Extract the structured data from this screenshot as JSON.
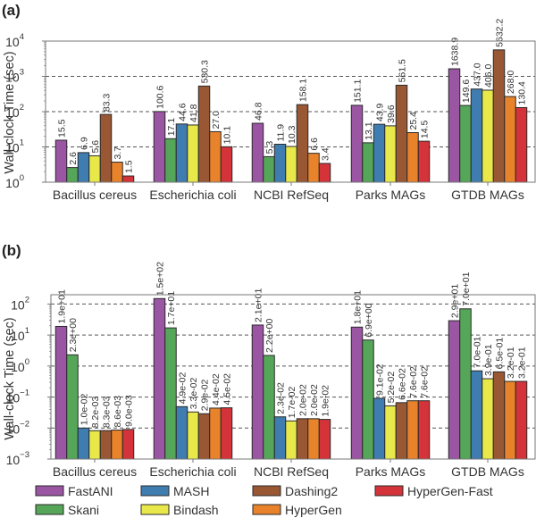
{
  "chart_data": [
    {
      "panel": "(a)",
      "type": "bar",
      "title": "",
      "xlabel": "",
      "ylabel": "Wall-clock Time (sec)",
      "yscale": "log",
      "ylim": [
        1,
        10000
      ],
      "yticks": [
        {
          "base": "10",
          "exp": "0"
        },
        {
          "base": "10",
          "exp": "1"
        },
        {
          "base": "10",
          "exp": "2"
        },
        {
          "base": "10",
          "exp": "3"
        },
        {
          "base": "10",
          "exp": "4"
        }
      ],
      "ytick_values": [
        1,
        10,
        100,
        1000,
        10000
      ],
      "grid": "horizontal dashed at 10, 100, 1000",
      "categories": [
        "Bacillus cereus",
        "Escherichia coli",
        "NCBI RefSeq",
        "Parks MAGs",
        "GTDB MAGs"
      ],
      "series": [
        {
          "name": "FastANI",
          "color": "#9a55a3",
          "values": [
            15.5,
            100.6,
            46.8,
            151.1,
            1638.9
          ],
          "labels": [
            "15.5",
            "100.6",
            "46.8",
            "151.1",
            "1638.9"
          ]
        },
        {
          "name": "Skani",
          "color": "#56a659",
          "values": [
            2.6,
            17.1,
            5.3,
            13.1,
            149.6
          ],
          "labels": [
            "2.6",
            "17.1",
            "5.3",
            "13.1",
            "149.6"
          ]
        },
        {
          "name": "MASH",
          "color": "#3f7db1",
          "values": [
            6.9,
            44.6,
            11.9,
            43.9,
            437.0
          ],
          "labels": [
            "6.9",
            "44.6",
            "11.9",
            "43.9",
            "437.0"
          ]
        },
        {
          "name": "Bindash",
          "color": "#e9e84b",
          "values": [
            5.6,
            41.8,
            10.3,
            39.6,
            406.0
          ],
          "labels": [
            "5.6",
            "41.8",
            "10.3",
            "39.6",
            "406.0"
          ]
        },
        {
          "name": "Dashing2",
          "color": "#995833",
          "values": [
            83.3,
            530.3,
            158.1,
            561.5,
            5632.2
          ],
          "labels": [
            "83.3",
            "530.3",
            "158.1",
            "561.5",
            "5632.2"
          ]
        },
        {
          "name": "HyperGen",
          "color": "#e8822b",
          "values": [
            3.7,
            27.0,
            6.6,
            25.4,
            268.0
          ],
          "labels": [
            "3.7",
            "27.0",
            "6.6",
            "25.4",
            "268.0"
          ]
        },
        {
          "name": "HyperGen-Fast",
          "color": "#d5333a",
          "values": [
            1.5,
            10.1,
            3.4,
            14.5,
            130.4
          ],
          "labels": [
            "1.5",
            "10.1",
            "3.4",
            "14.5",
            "130.4"
          ]
        }
      ]
    },
    {
      "panel": "(b)",
      "type": "bar",
      "title": "",
      "xlabel": "",
      "ylabel": "Wall-clock Time (sec)",
      "yscale": "log",
      "ylim": [
        0.001,
        200
      ],
      "yticks": [
        {
          "base": "10",
          "exp": "−3"
        },
        {
          "base": "10",
          "exp": "−2"
        },
        {
          "base": "10",
          "exp": "−1"
        },
        {
          "base": "10",
          "exp": "0"
        },
        {
          "base": "10",
          "exp": "1"
        },
        {
          "base": "10",
          "exp": "2"
        }
      ],
      "ytick_values": [
        0.001,
        0.01,
        0.1,
        1,
        10,
        100
      ],
      "grid": "horizontal dashed at 0.01, 0.1, 1, 10, 100",
      "categories": [
        "Bacillus cereus",
        "Escherichia coli",
        "NCBI RefSeq",
        "Parks MAGs",
        "GTDB MAGs"
      ],
      "series": [
        {
          "name": "FastANI",
          "color": "#9a55a3",
          "values": [
            19,
            150,
            21,
            18,
            29
          ],
          "labels": [
            "1.9e+01",
            "1.5e+02",
            "2.1e+01",
            "1.8e+01",
            "2.9e+01"
          ]
        },
        {
          "name": "Skani",
          "color": "#56a659",
          "values": [
            2.3,
            17,
            2.2,
            6.9,
            70
          ],
          "labels": [
            "2.3e+00",
            "1.7e+01",
            "2.2e+00",
            "6.9e+00",
            "7.0e+01"
          ]
        },
        {
          "name": "MASH",
          "color": "#3f7db1",
          "values": [
            0.01,
            0.049,
            0.023,
            0.091,
            0.7
          ],
          "labels": [
            "1.0e-02",
            "4.9e-02",
            "2.3e-02",
            "9.1e-02",
            "7.0e-01"
          ]
        },
        {
          "name": "Bindash",
          "color": "#e9e84b",
          "values": [
            0.0082,
            0.033,
            0.017,
            0.052,
            0.39
          ],
          "labels": [
            "8.2e-03",
            "3.3e-02",
            "1.7e-02",
            "5.2e-02",
            "3.9e-01"
          ]
        },
        {
          "name": "Dashing2",
          "color": "#995833",
          "values": [
            0.0083,
            0.029,
            0.02,
            0.066,
            0.65
          ],
          "labels": [
            "8.3e-03",
            "2.9e-02",
            "2.0e-02",
            "6.6e-02",
            "6.5e-01"
          ]
        },
        {
          "name": "HyperGen",
          "color": "#e8822b",
          "values": [
            0.0086,
            0.044,
            0.02,
            0.076,
            0.32
          ],
          "labels": [
            "8.6e-03",
            "4.4e-02",
            "2.0e-02",
            "7.6e-02",
            "3.2e-01"
          ]
        },
        {
          "name": "HyperGen-Fast",
          "color": "#d5333a",
          "values": [
            0.009,
            0.045,
            0.019,
            0.076,
            0.32
          ],
          "labels": [
            "9.0e-03",
            "4.5e-02",
            "1.9e-02",
            "7.6e-02",
            "3.2e-01"
          ]
        }
      ]
    }
  ],
  "legend": {
    "placement": "bottom",
    "items": [
      {
        "name": "FastANI",
        "color": "#9a55a3"
      },
      {
        "name": "MASH",
        "color": "#3f7db1"
      },
      {
        "name": "Dashing2",
        "color": "#995833"
      },
      {
        "name": "HyperGen-Fast",
        "color": "#d5333a"
      },
      {
        "name": "Skani",
        "color": "#56a659"
      },
      {
        "name": "Bindash",
        "color": "#e9e84b"
      },
      {
        "name": "HyperGen",
        "color": "#e8822b"
      }
    ]
  }
}
